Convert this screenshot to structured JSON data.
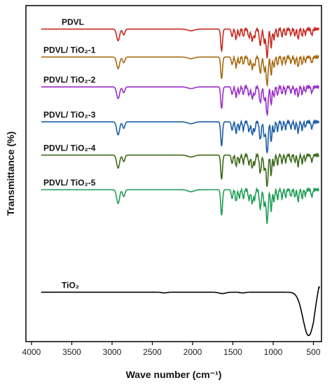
{
  "chart_data": {
    "type": "line",
    "xlabel": "Wave number (cm⁻¹)",
    "ylabel": "Transmittance (%)",
    "xlim": [
      4000,
      400
    ],
    "x_reversed": true,
    "x_ticks": [
      4000,
      3500,
      3000,
      2500,
      2000,
      1500,
      1000,
      500
    ],
    "y_ticks_shown": false,
    "grid": false,
    "legend": "inline labels above each trace",
    "series": [
      {
        "name": "PDVL",
        "color": "#c8281e",
        "baseline": 0.93,
        "depth": 0.85
      },
      {
        "name": "PDVL/ TiO₂-1",
        "color": "#a66a12",
        "baseline": 0.847,
        "depth": 0.85
      },
      {
        "name": "PDVL/ TiO₂-2",
        "color": "#9a2fc6",
        "baseline": 0.758,
        "depth": 0.85
      },
      {
        "name": "PDVL/ TiO₂-3",
        "color": "#1c5ea8",
        "baseline": 0.654,
        "depth": 0.95
      },
      {
        "name": "PDVL/ TiO₂-4",
        "color": "#3e6b1c",
        "baseline": 0.555,
        "depth": 0.95
      },
      {
        "name": "PDVL/ TiO₂-5",
        "color": "#1e9e55",
        "baseline": 0.452,
        "depth": 1.0
      },
      {
        "name": "TiO₂",
        "color": "#000000",
        "baseline": 0.147,
        "depth": 1.0
      }
    ]
  }
}
